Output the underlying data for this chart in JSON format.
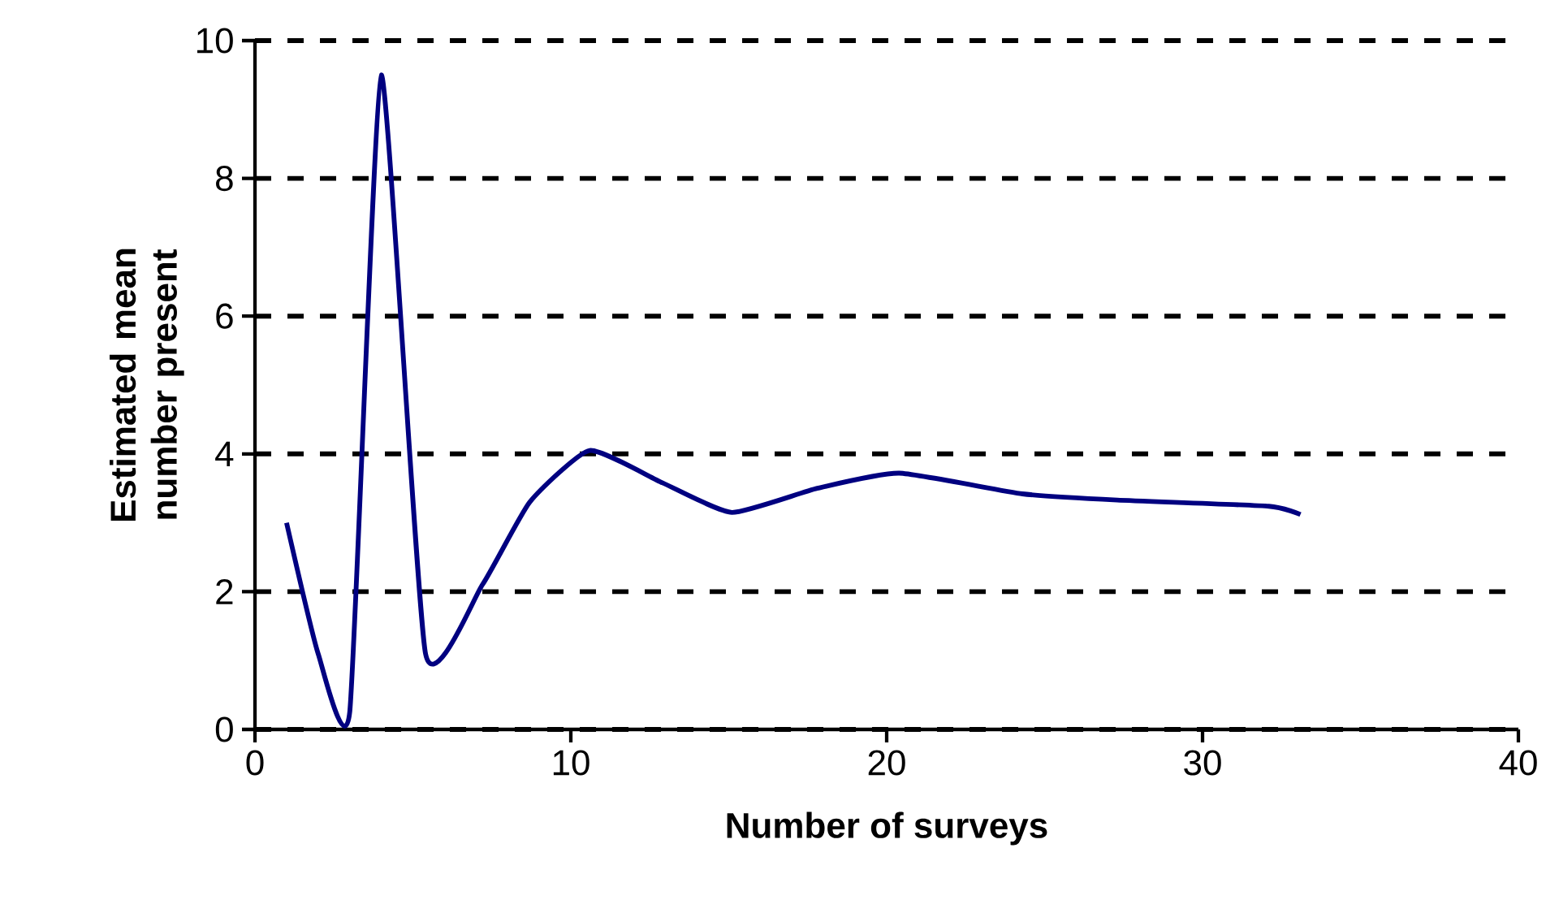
{
  "chart_data": {
    "type": "line",
    "xlabel": "Number of surveys",
    "ylabel": "Estimated mean number present",
    "series": [
      {
        "color": "#000080",
        "x": [
          1,
          2,
          3,
          4,
          5.4,
          7.2,
          8.7,
          10.6,
          12.9,
          15.1,
          17.8,
          20.4,
          24.3,
          27.3,
          32.1,
          33.1
        ],
        "values": [
          3.0,
          1.1,
          0.25,
          9.5,
          1.1,
          2.1,
          3.3,
          4.05,
          3.58,
          3.15,
          3.5,
          3.72,
          3.42,
          3.33,
          3.24,
          3.12
        ]
      }
    ],
    "xlim": [
      0,
      40
    ],
    "xticks": [
      0,
      10,
      20,
      30,
      40
    ],
    "ylim": [
      0,
      10
    ],
    "yticks": [
      0,
      2,
      4,
      6,
      8,
      10
    ],
    "grid": "y",
    "marker": "none",
    "line_style": "solid"
  }
}
